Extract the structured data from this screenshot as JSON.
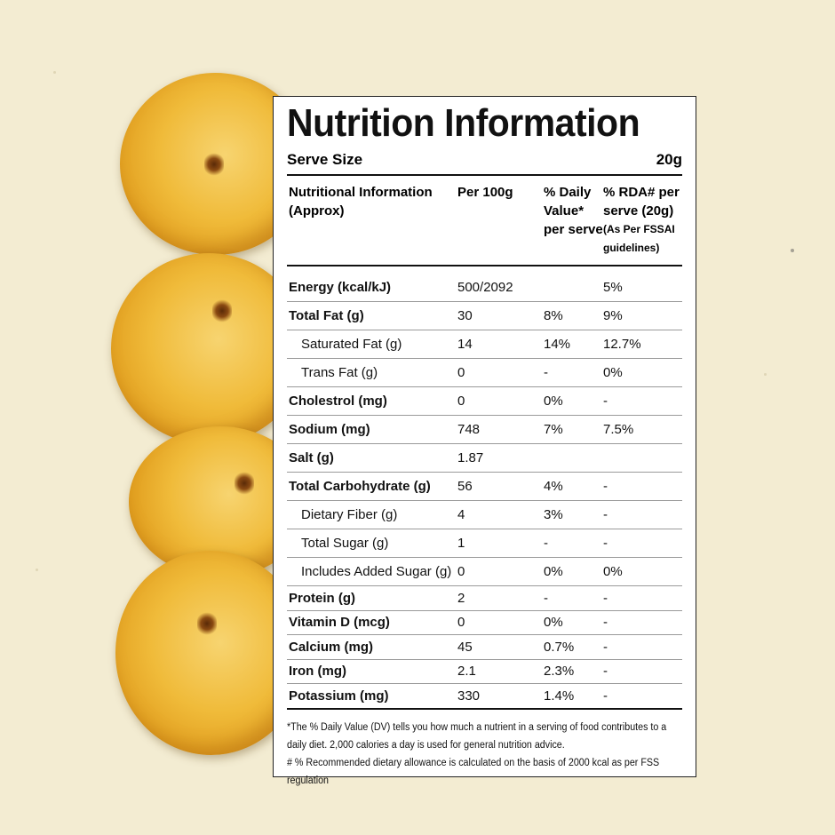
{
  "label": {
    "title": "Nutrition Information",
    "serve_size_label": "Serve Size",
    "serve_size_value": "20g",
    "headers": {
      "nutrient": "Nutritional Information (Approx)",
      "per100": "Per 100g",
      "dv": "% Daily Value* per serve",
      "rda": "% RDA# per serve (20g)",
      "rda_note": "(As Per FSSAI guidelines)"
    },
    "rows": [
      {
        "name": "Energy (kcal/kJ)",
        "per100": "500/2092",
        "dv": "",
        "rda": "5%",
        "bold": true,
        "indent": false
      },
      {
        "name": "Total Fat (g)",
        "per100": "30",
        "dv": "8%",
        "rda": "9%",
        "bold": true,
        "indent": false
      },
      {
        "name": "Saturated Fat (g)",
        "per100": "14",
        "dv": "14%",
        "rda": "12.7%",
        "bold": false,
        "indent": true
      },
      {
        "name": "Trans Fat (g)",
        "per100": "0",
        "dv": "-",
        "rda": "0%",
        "bold": false,
        "indent": true
      },
      {
        "name": "Cholestrol (mg)",
        "per100": "0",
        "dv": "0%",
        "rda": "-",
        "bold": true,
        "indent": false
      },
      {
        "name": "Sodium (mg)",
        "per100": "748",
        "dv": "7%",
        "rda": "7.5%",
        "bold": true,
        "indent": false
      },
      {
        "name": "Salt (g)",
        "per100": "1.87",
        "dv": "",
        "rda": "",
        "bold": true,
        "indent": false
      },
      {
        "name": "Total Carbohydrate (g)",
        "per100": "56",
        "dv": "4%",
        "rda": "-",
        "bold": true,
        "indent": false
      },
      {
        "name": "Dietary Fiber (g)",
        "per100": "4",
        "dv": "3%",
        "rda": "-",
        "bold": false,
        "indent": true
      },
      {
        "name": "Total Sugar (g)",
        "per100": "1",
        "dv": "-",
        "rda": "-",
        "bold": false,
        "indent": true
      },
      {
        "name": "Includes Added Sugar (g)",
        "per100": "0",
        "dv": "0%",
        "rda": "0%",
        "bold": false,
        "indent": true
      },
      {
        "name": "Protein (g)",
        "per100": "2",
        "dv": "-",
        "rda": "-",
        "bold": true,
        "indent": false
      },
      {
        "name": "Vitamin D (mcg)",
        "per100": "0",
        "dv": "0%",
        "rda": "-",
        "bold": true,
        "indent": false
      },
      {
        "name": "Calcium (mg)",
        "per100": "45",
        "dv": "0.7%",
        "rda": "-",
        "bold": true,
        "indent": false
      },
      {
        "name": "Iron (mg)",
        "per100": "2.1",
        "dv": "2.3%",
        "rda": "-",
        "bold": true,
        "indent": false
      },
      {
        "name": "Potassium (mg)",
        "per100": "330",
        "dv": "1.4%",
        "rda": "-",
        "bold": true,
        "indent": false
      }
    ],
    "footnote_dv": "*The % Daily Value (DV) tells you how much a nutrient in a serving of food contributes to a daily diet. 2,000 calories a day is used for general nutrition advice.",
    "footnote_rda": "# % Recommended dietary allowance  is calculated on the basis of 2000 kcal as per FSS regulation"
  },
  "colors": {
    "background": "#f3ecd2",
    "chip": "#f0bb3a",
    "label_bg": "#ffffff",
    "text": "#111111"
  }
}
